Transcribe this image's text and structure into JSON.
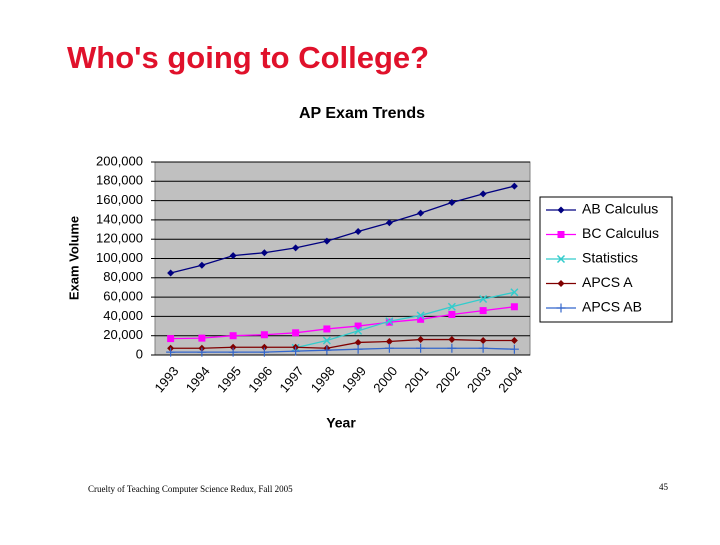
{
  "slide_title": "Who's going to College?",
  "footer": "Cruelty of Teaching Computer Science Redux, Fall 2005",
  "page_number": "45",
  "chart_data": {
    "type": "line",
    "title": "AP Exam Trends",
    "x_label": "Year",
    "y_label": "Exam Volume",
    "categories": [
      "1993",
      "1994",
      "1995",
      "1996",
      "1997",
      "1998",
      "1999",
      "2000",
      "2001",
      "2002",
      "2003",
      "2004"
    ],
    "ylim": [
      0,
      200000
    ],
    "yticks": [
      {
        "value": 0,
        "label": "0"
      },
      {
        "value": 20000,
        "label": "20,000"
      },
      {
        "value": 40000,
        "label": "40,000"
      },
      {
        "value": 60000,
        "label": "60,000"
      },
      {
        "value": 80000,
        "label": "80,000"
      },
      {
        "value": 100000,
        "label": "100,000"
      },
      {
        "value": 120000,
        "label": "120,000"
      },
      {
        "value": 140000,
        "label": "140,000"
      },
      {
        "value": 160000,
        "label": "160,000"
      },
      {
        "value": 180000,
        "label": "180,000"
      },
      {
        "value": 200000,
        "label": "200,000"
      }
    ],
    "grid": true,
    "legend": "right",
    "series": [
      {
        "name": "AB Calculus",
        "color": "#000080",
        "marker": "diamond",
        "values": [
          85000,
          93000,
          103000,
          106000,
          111000,
          118000,
          128000,
          137000,
          147000,
          158000,
          167000,
          175000
        ]
      },
      {
        "name": "BC Calculus",
        "color": "#ff00ff",
        "marker": "square",
        "values": [
          17000,
          17500,
          20000,
          21000,
          23000,
          27000,
          30000,
          34000,
          37000,
          42000,
          46000,
          50000
        ]
      },
      {
        "name": "Statistics",
        "color": "#33cccc",
        "marker": "x",
        "values": [
          null,
          null,
          null,
          null,
          7500,
          15000,
          25000,
          35000,
          41000,
          50000,
          58000,
          65000
        ]
      },
      {
        "name": "APCS A",
        "color": "#800000",
        "marker": "diamond",
        "values": [
          7000,
          7000,
          8000,
          8000,
          8000,
          7000,
          13000,
          14000,
          16000,
          16000,
          15000,
          15000
        ]
      },
      {
        "name": "APCS AB",
        "color": "#3366cc",
        "marker": "plus",
        "values": [
          3000,
          3000,
          3000,
          3000,
          4000,
          5000,
          6000,
          7000,
          7000,
          7000,
          7000,
          6000
        ]
      }
    ]
  }
}
